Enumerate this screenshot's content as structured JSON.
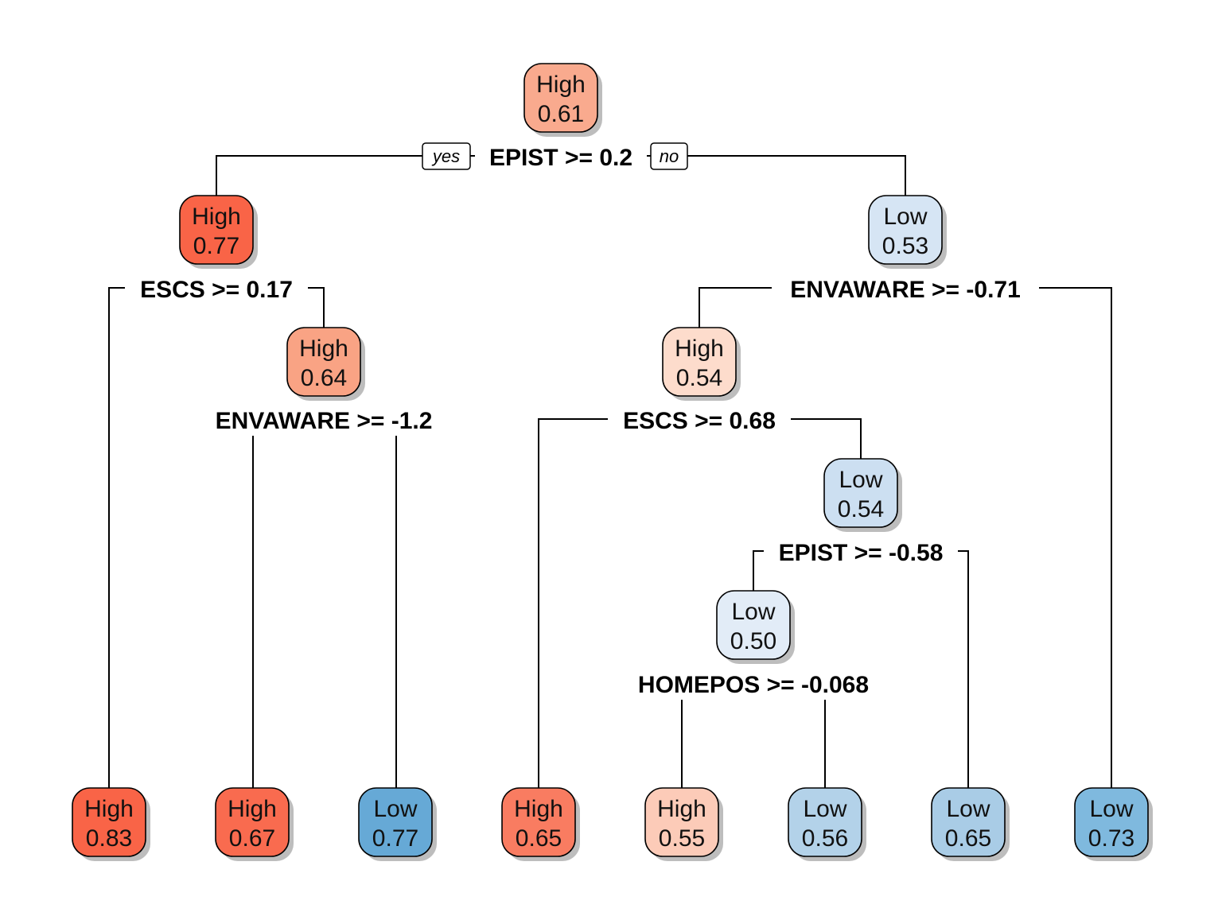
{
  "colors": {
    "high_1": "#FB6A4A",
    "high_2": "#FC9272",
    "high_3": "#FCBBA1",
    "high_4": "#FEE0D2",
    "low_1": "#DEEBF7",
    "low_2": "#C6DBEF",
    "low_3": "#9ECAE1",
    "low_4": "#6BAED6"
  },
  "branch_labels": {
    "yes": "yes",
    "no": "no"
  },
  "nodes": [
    {
      "id": "root",
      "cls": "High",
      "prob": "0.61",
      "color": "#F9AA8E"
    },
    {
      "id": "n2",
      "cls": "High",
      "prob": "0.77",
      "color": "#F96447"
    },
    {
      "id": "n3",
      "cls": "Low",
      "prob": "0.53",
      "color": "#D6E5F4"
    },
    {
      "id": "n5",
      "cls": "High",
      "prob": "0.64",
      "color": "#F9A384"
    },
    {
      "id": "n6",
      "cls": "High",
      "prob": "0.54",
      "color": "#FDDCCC"
    },
    {
      "id": "n13",
      "cls": "Low",
      "prob": "0.54",
      "color": "#CCDFF1"
    },
    {
      "id": "n26",
      "cls": "Low",
      "prob": "0.50",
      "color": "#E2ECF7"
    },
    {
      "id": "l1",
      "cls": "High",
      "prob": "0.83",
      "color": "#F96447"
    },
    {
      "id": "l2",
      "cls": "High",
      "prob": "0.67",
      "color": "#F96B4F"
    },
    {
      "id": "l3",
      "cls": "Low",
      "prob": "0.77",
      "color": "#66A9D6"
    },
    {
      "id": "l4",
      "cls": "High",
      "prob": "0.65",
      "color": "#F97C61"
    },
    {
      "id": "l5",
      "cls": "High",
      "prob": "0.55",
      "color": "#FCCBB8"
    },
    {
      "id": "l6",
      "cls": "Low",
      "prob": "0.56",
      "color": "#B3D2E9"
    },
    {
      "id": "l7",
      "cls": "Low",
      "prob": "0.65",
      "color": "#A9CCE6"
    },
    {
      "id": "l8",
      "cls": "Low",
      "prob": "0.73",
      "color": "#7FB9DE"
    }
  ],
  "splits": [
    {
      "id": "s_root",
      "text": "EPIST >= 0.2"
    },
    {
      "id": "s_n2",
      "text": "ESCS >= 0.17"
    },
    {
      "id": "s_n3",
      "text": "ENVAWARE >= -0.71"
    },
    {
      "id": "s_n5",
      "text": "ENVAWARE >= -1.2"
    },
    {
      "id": "s_n6",
      "text": "ESCS >= 0.68"
    },
    {
      "id": "s_n13",
      "text": "EPIST >= -0.58"
    },
    {
      "id": "s_n26",
      "text": "HOMEPOS >= -0.068"
    }
  ]
}
